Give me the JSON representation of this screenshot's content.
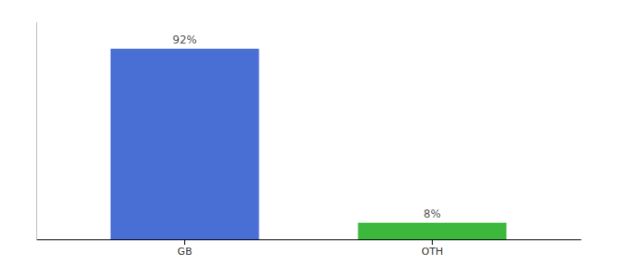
{
  "chart_data": {
    "type": "bar",
    "categories": [
      "GB",
      "OTH"
    ],
    "values": [
      92,
      8
    ],
    "value_labels": [
      "92%",
      "8%"
    ],
    "colors": [
      "#4a6fd4",
      "#3cb93c"
    ],
    "ylim": [
      0,
      105
    ],
    "data_labels": true,
    "tick_labels": "x"
  }
}
